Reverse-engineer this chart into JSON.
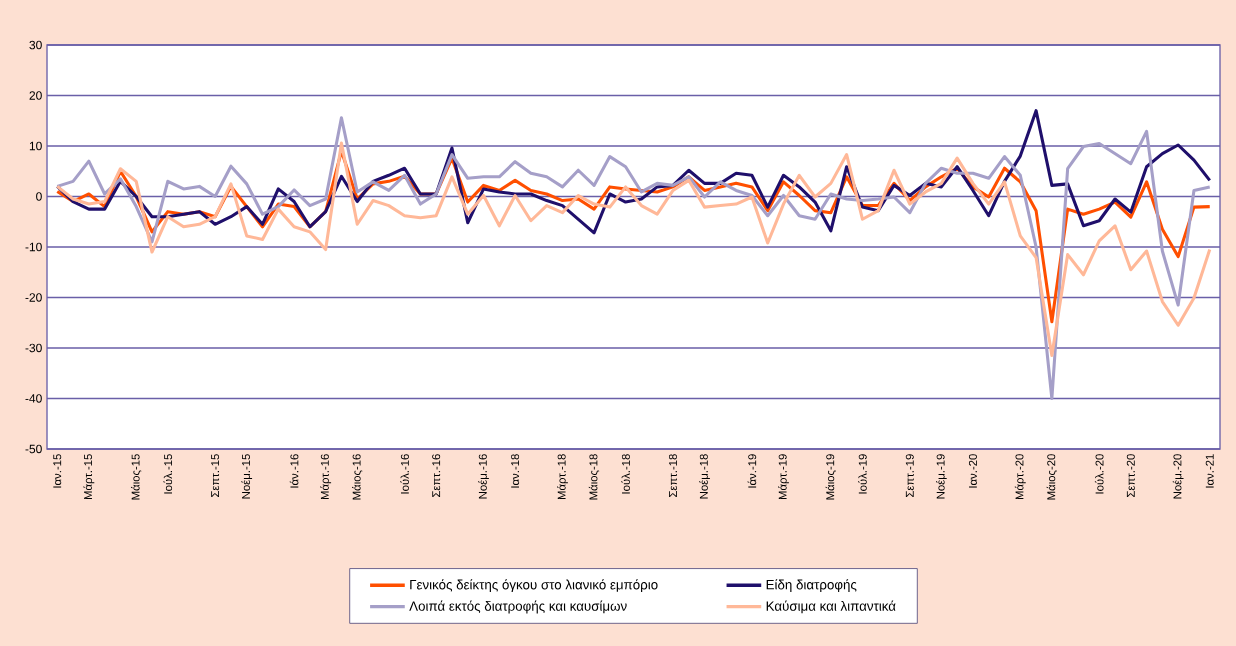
{
  "chart_data": {
    "type": "line",
    "categories": [
      "Ιαν.-15",
      null,
      "Μάρτ.-15",
      null,
      null,
      "Μάιος-15",
      null,
      "Ιούλ.-15",
      null,
      null,
      "Σεπτ.-15",
      null,
      "Νοέμ.-15",
      null,
      null,
      "Ιάν.-16",
      null,
      "Μάρτ.-16",
      null,
      "Μάιος-16",
      null,
      null,
      "Ιούλ.-16",
      null,
      "Σεπτ.-16",
      null,
      null,
      "Νοέμ.-16",
      null,
      "Ιαν.-18",
      null,
      null,
      "Μάρτ.-18",
      null,
      "Μάιος-18",
      null,
      "Ιούλ.-18",
      null,
      null,
      "Σεπτ.-18",
      null,
      "Νοέμ.-18",
      null,
      null,
      "Ιάν.-19",
      null,
      "Μάρτ.-19",
      null,
      null,
      "Μάιος-19",
      null,
      "Ιούλ.-19",
      null,
      null,
      "Σεπτ.-19",
      null,
      "Νοέμ.-19",
      null,
      "Ιαν.-20",
      null,
      null,
      "Μάρτ.-20",
      null,
      "Μάιος-20",
      null,
      null,
      "Ιούλ.-20",
      null,
      "Σεπτ.-20",
      null,
      null,
      "Νοέμ.-20",
      null,
      "Ιαν.-21"
    ],
    "series": [
      {
        "name": "Γενικός δείκτης όγκου στο λιανικό εμπόριο",
        "color": "#ff4f00",
        "values": [
          1,
          -1,
          0.5,
          -2,
          5,
          0,
          -7,
          -3,
          -3.5,
          -3,
          -4,
          2,
          -2,
          -6,
          -1.5,
          -2,
          -6,
          -3,
          9,
          -0.5,
          2.5,
          3,
          4,
          0.5,
          0.5,
          7.6,
          -1.1,
          2.2,
          1.2,
          3.2,
          1.2,
          0.5,
          -0.8,
          -0.5,
          -2.5,
          1.9,
          1.5,
          1.2,
          0.9,
          1.9,
          3.9,
          1.2,
          1.9,
          2.6,
          1.9,
          -2.8,
          2.9,
          0.2,
          -2.8,
          -3.2,
          3.9,
          -1.8,
          -1.8,
          2.6,
          -0.8,
          1.9,
          3.9,
          5.6,
          1.9,
          -0.1,
          5.6,
          2.9,
          -2.8,
          -24.8,
          -2.5,
          -3.5,
          -2.5,
          -1.1,
          -4.1,
          2.9,
          -6.5,
          -11.9,
          -2.1,
          -2
        ]
      },
      {
        "name": "Είδη διατροφής",
        "color": "#1f0f6b",
        "values": [
          2,
          -1,
          -2.5,
          -2.5,
          3,
          0,
          -4,
          -4,
          -3.5,
          -3,
          -5.5,
          -4,
          -2,
          -5.5,
          1.5,
          -1,
          -6,
          -3,
          4,
          -1,
          3,
          4.2,
          5.6,
          0.5,
          0.5,
          9.6,
          -5.2,
          1.5,
          0.9,
          0.5,
          0.5,
          -0.8,
          -1.8,
          -4.5,
          -7.2,
          0.5,
          -1.1,
          -0.5,
          1.9,
          2.2,
          5.2,
          2.6,
          2.6,
          4.6,
          4.2,
          -2.1,
          4.2,
          1.9,
          -1.1,
          -6.8,
          5.9,
          -2.1,
          -2.8,
          2.2,
          0.2,
          2.6,
          1.9,
          5.9,
          1.2,
          -3.8,
          3,
          8,
          17,
          2.2,
          2.5,
          -5.8,
          -4.8,
          -0.5,
          -3.1,
          5.9,
          8.5,
          10.2,
          7.2,
          3.2
        ]
      },
      {
        "name": "Λοιπά εκτός διατροφής και καυσίμων",
        "color": "#a59fc8",
        "values": [
          2,
          3,
          7,
          0.5,
          3.5,
          -2,
          -9,
          3,
          1.5,
          2,
          0,
          6,
          2.5,
          -3.5,
          -2,
          1.3,
          -1.8,
          -0.5,
          15.6,
          0.9,
          2.9,
          1.2,
          4.2,
          -1.5,
          0.5,
          8.3,
          3.6,
          3.9,
          3.9,
          6.9,
          4.6,
          3.9,
          1.9,
          5.2,
          2.2,
          7.9,
          5.9,
          0.9,
          2.6,
          2.2,
          3.9,
          -0.1,
          2.9,
          1.2,
          0.2,
          -3.8,
          0.2,
          -3.8,
          -4.5,
          0.5,
          -0.5,
          -0.8,
          -0.5,
          -0.1,
          -3.2,
          2.6,
          5.6,
          4.6,
          4.6,
          3.6,
          7.9,
          4.2,
          -10,
          -40,
          5.5,
          9.9,
          10.5,
          8.5,
          6.5,
          12.9,
          -10.8,
          -21.5,
          1.2,
          1.9
        ]
      },
      {
        "name": "Καύσιμα και λιπαντικά",
        "color": "#ffb898",
        "values": [
          2,
          -0.5,
          -1.5,
          -1,
          5.5,
          3,
          -11,
          -4,
          -6,
          -5.5,
          -4,
          2.5,
          -7.8,
          -8.5,
          -2.5,
          -6,
          -7,
          -10.5,
          10.6,
          -5.5,
          -0.8,
          -1.8,
          -3.8,
          -4.2,
          -3.8,
          3.9,
          -3.5,
          0.2,
          -5.8,
          0.2,
          -4.8,
          -1.8,
          -3.2,
          0.2,
          -1.5,
          -2.1,
          1.9,
          -1.8,
          -3.5,
          1.2,
          3.2,
          -2.1,
          -1.8,
          -1.5,
          -0.1,
          -9.2,
          -1.5,
          4.2,
          -0.1,
          2.6,
          8.3,
          -4.5,
          -2.8,
          5.2,
          -1.5,
          0.9,
          2.6,
          7.6,
          2.6,
          -1.5,
          2.9,
          -7.8,
          -12.1,
          -31.5,
          -11.5,
          -15.5,
          -8.8,
          -5.8,
          -14.5,
          -10.8,
          -20.8,
          -25.5,
          -20.1,
          -10.5
        ]
      }
    ],
    "ylim": [
      -50,
      30
    ],
    "yticks": [
      -50,
      -40,
      -30,
      -20,
      -10,
      0,
      10,
      20,
      30
    ],
    "grid": "y",
    "legend": "bottom",
    "marker": "none",
    "line_style": "solid"
  }
}
